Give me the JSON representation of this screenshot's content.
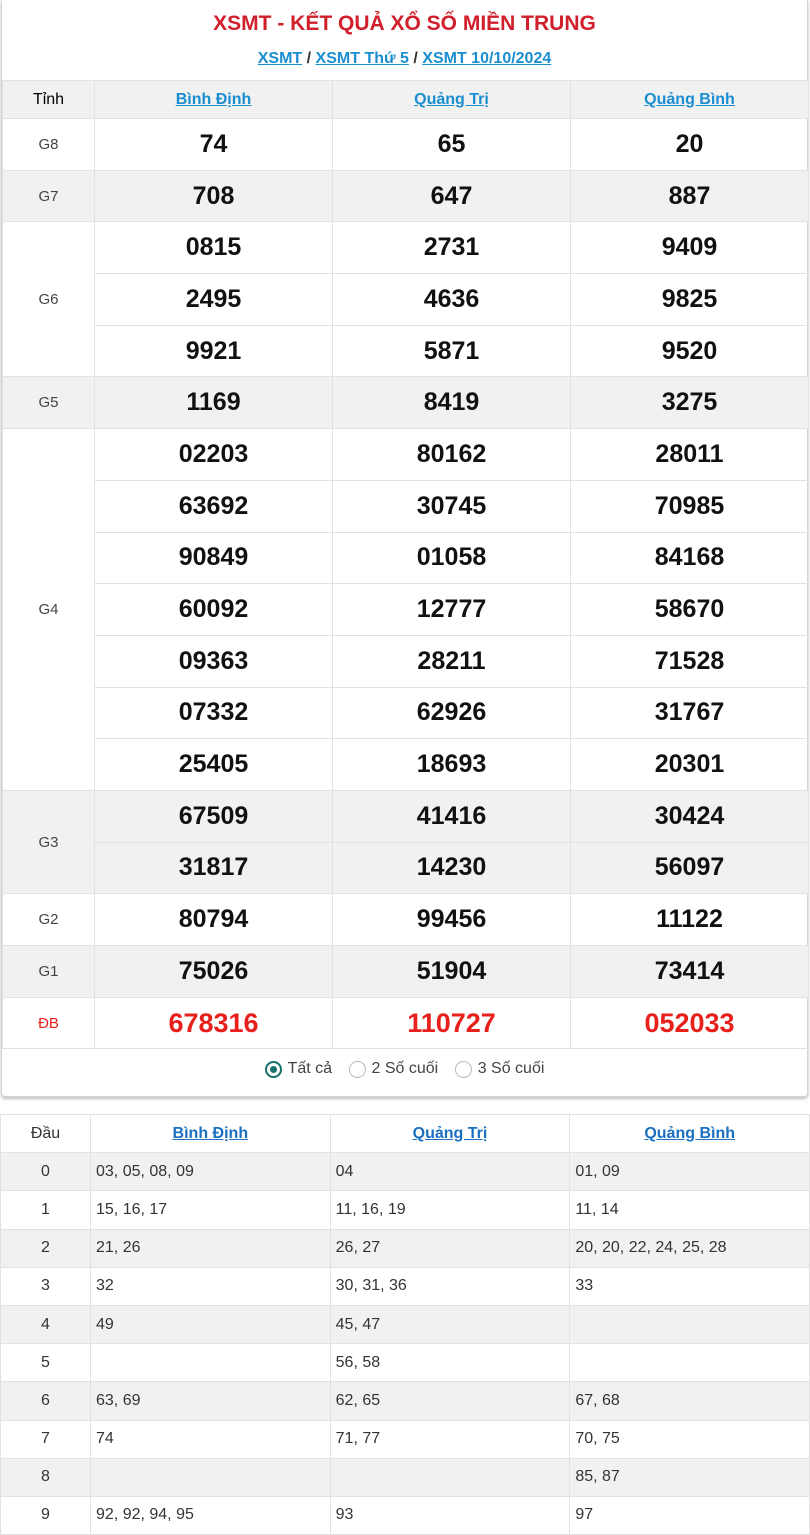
{
  "title": "XSMT - KẾT QUẢ XỔ SỐ MIỀN TRUNG",
  "breadcrumb": [
    "XSMT",
    "XSMT Thứ 5",
    "XSMT 10/10/2024"
  ],
  "breadcrumb_sep": "/",
  "main": {
    "label_header": "Tỉnh",
    "provinces": [
      "Bình Định",
      "Quảng Trị",
      "Quảng Bình"
    ],
    "prizes": [
      {
        "label": "G8",
        "rows": [
          [
            "74",
            "65",
            "20"
          ]
        ]
      },
      {
        "label": "G7",
        "rows": [
          [
            "708",
            "647",
            "887"
          ]
        ]
      },
      {
        "label": "G6",
        "rows": [
          [
            "0815",
            "2731",
            "9409"
          ],
          [
            "2495",
            "4636",
            "9825"
          ],
          [
            "9921",
            "5871",
            "9520"
          ]
        ]
      },
      {
        "label": "G5",
        "rows": [
          [
            "1169",
            "8419",
            "3275"
          ]
        ]
      },
      {
        "label": "G4",
        "rows": [
          [
            "02203",
            "80162",
            "28011"
          ],
          [
            "63692",
            "30745",
            "70985"
          ],
          [
            "90849",
            "01058",
            "84168"
          ],
          [
            "60092",
            "12777",
            "58670"
          ],
          [
            "09363",
            "28211",
            "71528"
          ],
          [
            "07332",
            "62926",
            "31767"
          ],
          [
            "25405",
            "18693",
            "20301"
          ]
        ]
      },
      {
        "label": "G3",
        "rows": [
          [
            "67509",
            "41416",
            "30424"
          ],
          [
            "31817",
            "14230",
            "56097"
          ]
        ]
      },
      {
        "label": "G2",
        "rows": [
          [
            "80794",
            "99456",
            "11122"
          ]
        ]
      },
      {
        "label": "G1",
        "rows": [
          [
            "75026",
            "51904",
            "73414"
          ]
        ]
      },
      {
        "label": "ĐB",
        "rows": [
          [
            "678316",
            "110727",
            "052033"
          ]
        ]
      }
    ]
  },
  "filter": {
    "options": [
      "Tất cả",
      "2 Số cuối",
      "3 Số cuối"
    ],
    "selected": 0,
    "accent": "#17706a"
  },
  "dau_table": {
    "header": "Đầu",
    "provinces": [
      "Bình Định",
      "Quảng Trị",
      "Quảng Bình"
    ],
    "rows": [
      [
        "0",
        "03, 05, 08, 09",
        "04",
        "01, 09"
      ],
      [
        "1",
        "15, 16, 17",
        "11, 16, 19",
        "11, 14"
      ],
      [
        "2",
        "21, 26",
        "26, 27",
        "20, 20, 22, 24, 25, 28"
      ],
      [
        "3",
        "32",
        "30, 31, 36",
        "33"
      ],
      [
        "4",
        "49",
        "45, 47",
        ""
      ],
      [
        "5",
        "",
        "56, 58",
        ""
      ],
      [
        "6",
        "63, 69",
        "62, 65",
        "67, 68"
      ],
      [
        "7",
        "74",
        "71, 77",
        "70, 75"
      ],
      [
        "8",
        "",
        "",
        "85, 87"
      ],
      [
        "9",
        "92, 92, 94, 95",
        "93",
        "97"
      ]
    ]
  },
  "colors": {
    "title": "#d0202c",
    "link": "#1a8ed0",
    "special": "#e8201c"
  }
}
